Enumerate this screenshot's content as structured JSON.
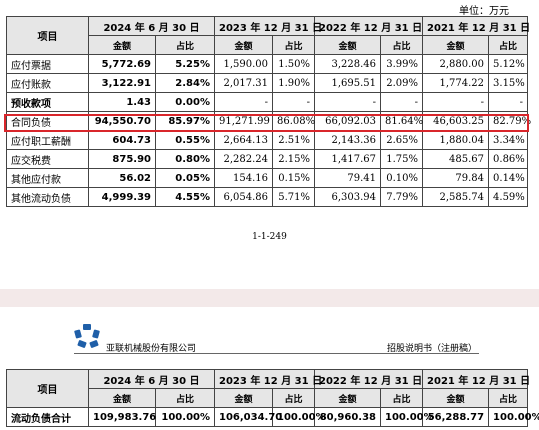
{
  "unit_label": "单位：万元",
  "headers": {
    "item": "项目",
    "periods": [
      "2024 年 6 月 30 日",
      "2023 年 12 月 31 日",
      "2022 年 12 月 31 日",
      "2021 年 12 月 31 日"
    ],
    "amount": "金额",
    "ratio": "占比"
  },
  "rows": [
    {
      "label": "应付票据",
      "values": [
        "5,772.69",
        "5.25%",
        "1,590.00",
        "1.50%",
        "3,228.46",
        "3.99%",
        "2,880.00",
        "5.12%"
      ]
    },
    {
      "label": "应付账款",
      "values": [
        "3,122.91",
        "2.84%",
        "2,017.31",
        "1.90%",
        "1,695.51",
        "2.09%",
        "1,774.22",
        "3.15%"
      ]
    },
    {
      "label": "预收款项",
      "values": [
        "1.43",
        "0.00%",
        "-",
        "-",
        "-",
        "-",
        "-",
        "-"
      ]
    },
    {
      "label": "合同负债",
      "values": [
        "94,550.70",
        "85.97%",
        "91,271.99",
        "86.08%",
        "66,092.03",
        "81.64%",
        "46,603.25",
        "82.79%"
      ]
    },
    {
      "label": "应付职工薪酬",
      "values": [
        "604.73",
        "0.55%",
        "2,664.13",
        "2.51%",
        "2,143.36",
        "2.65%",
        "1,880.04",
        "3.34%"
      ]
    },
    {
      "label": "应交税费",
      "values": [
        "875.90",
        "0.80%",
        "2,282.24",
        "2.15%",
        "1,417.67",
        "1.75%",
        "485.67",
        "0.86%"
      ]
    },
    {
      "label": "其他应付款",
      "values": [
        "56.02",
        "0.05%",
        "154.16",
        "0.15%",
        "79.41",
        "0.10%",
        "79.84",
        "0.14%"
      ]
    },
    {
      "label": "其他流动负债",
      "values": [
        "4,999.39",
        "4.55%",
        "6,054.86",
        "5.71%",
        "6,303.94",
        "7.79%",
        "2,585.74",
        "4.59%"
      ]
    }
  ],
  "page_number": "1-1-249",
  "header2": {
    "company": "亚联机械股份有限公司",
    "doc_title": "招股说明书（注册稿）"
  },
  "total_row": {
    "label": "流动负债合计",
    "values": [
      "109,983.76",
      "100.00%",
      "106,034.70",
      "100.00%",
      "80,960.38",
      "100.00%",
      "56,288.77",
      "100.00%"
    ]
  },
  "colors": {
    "highlight": "#d9262b",
    "logo": "#1f5fa8",
    "header_bg": "#e6e6e6"
  }
}
